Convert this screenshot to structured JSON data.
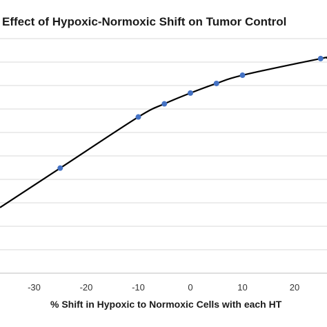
{
  "chart_data": {
    "type": "line",
    "title": "Effect of Hypoxic-Normoxic Shift on Tumor Control",
    "xlabel": "% Shift in Hypoxic to Normoxic Cells with each HT",
    "ylabel": "",
    "x_ticks": [
      "-30",
      "-20",
      "-10",
      "0",
      "10",
      "20"
    ],
    "xlim": [
      -36,
      26
    ],
    "y_gridlines": 11,
    "grid": true,
    "legend": "none",
    "series": [
      {
        "x": [
          -25,
          -10,
          -5,
          0,
          5,
          10,
          25
        ],
        "y": [
          0.448,
          0.666,
          0.722,
          0.768,
          0.809,
          0.844,
          0.915
        ]
      }
    ],
    "line_color": "#000000",
    "marker_color": "#4472C4"
  }
}
